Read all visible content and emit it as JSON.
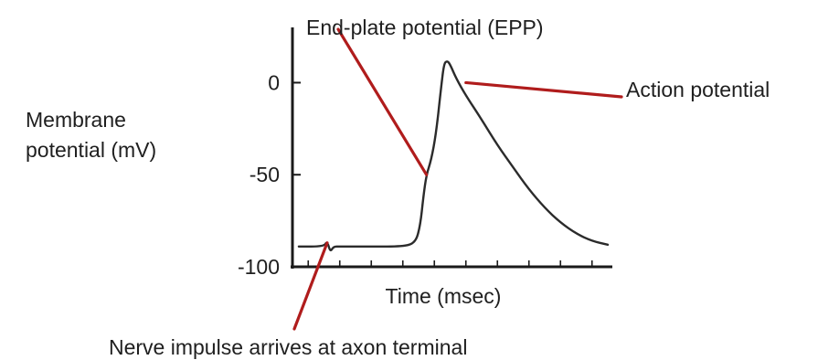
{
  "chart_data": {
    "type": "line",
    "title": "",
    "xlabel": "Time (msec)",
    "ylabel": "Membrane potential (mV)",
    "ylabel_lines": [
      "Membrane",
      "potential (mV)"
    ],
    "ylim": [
      -100,
      30
    ],
    "xlim": [
      0,
      10
    ],
    "yticks": [
      {
        "value": 0,
        "label": "0"
      },
      {
        "value": -50,
        "label": "-50"
      },
      {
        "value": -100,
        "label": "-100"
      }
    ],
    "xticks": [
      0.5,
      1.5,
      2.5,
      3.5,
      4.5,
      5.5,
      6.5,
      7.5,
      8.5,
      9.5
    ],
    "series": [
      {
        "x": [
          0.2,
          1.0,
          1.1,
          1.2,
          1.3,
          1.5,
          2.5,
          3.5,
          3.9,
          4.05,
          4.15,
          4.25,
          4.4,
          4.55,
          4.7,
          4.8,
          4.9,
          5.0,
          5.2,
          5.5,
          6.0,
          6.5,
          7.0,
          7.5,
          8.0,
          8.5,
          9.0,
          9.5,
          10.0
        ],
        "y": [
          -89,
          -89,
          -86,
          -92,
          -89,
          -89,
          -89,
          -89,
          -87,
          -78,
          -62,
          -50,
          -42,
          -28,
          -5,
          10,
          12,
          10,
          2,
          -7,
          -20,
          -34,
          -46,
          -58,
          -68,
          -76,
          -82,
          -86,
          -88
        ]
      }
    ],
    "annotations": [
      {
        "text": "End-plate potential (EPP)",
        "point": [
          4.25,
          -50
        ]
      },
      {
        "text": "Action potential",
        "point": [
          5.5,
          0
        ]
      },
      {
        "text": "Nerve impulse arrives at axon terminal",
        "point": [
          1.1,
          -87
        ]
      }
    ],
    "colors": {
      "curve": "#2b2b2b",
      "axis": "#1a1a1a",
      "pointer": "#b01c1c"
    }
  }
}
